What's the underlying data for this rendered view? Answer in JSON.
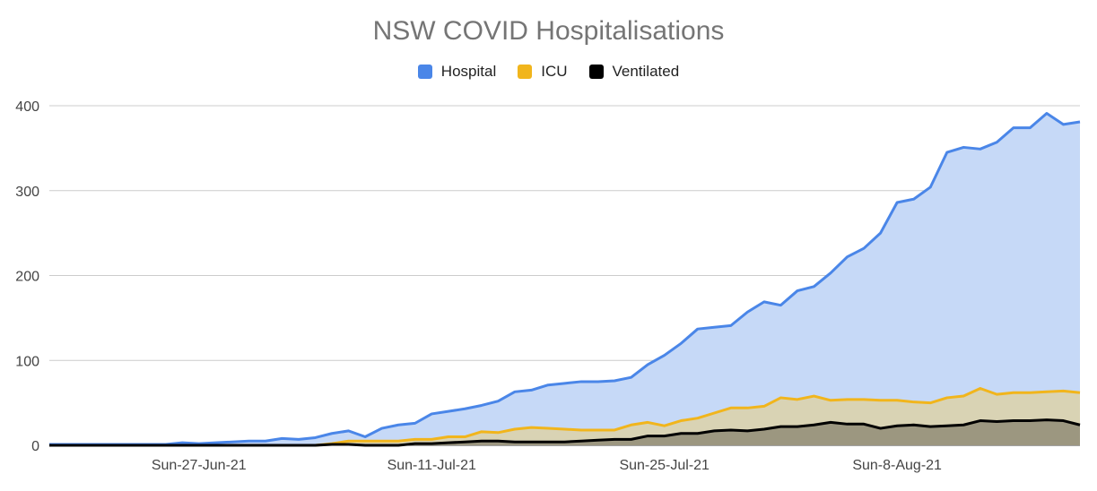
{
  "chart_data": {
    "type": "area",
    "title": "NSW COVID Hospitalisations",
    "xlabel": "",
    "ylabel": "",
    "ylim": [
      0,
      400
    ],
    "yticks": [
      0,
      100,
      200,
      300,
      400
    ],
    "x_tick_labels": [
      "Sun-27-Jun-21",
      "Sun-11-Jul-21",
      "Sun-25-Jul-21",
      "Sun-8-Aug-21"
    ],
    "x_start_date": "2021-06-18",
    "grid": true,
    "legend": "top",
    "series": [
      {
        "name": "Hospital",
        "color": "#4a86e8",
        "fill": "#c6d9f7",
        "values": [
          1,
          1,
          1,
          1,
          1,
          1,
          1,
          1,
          3,
          2,
          3,
          4,
          5,
          5,
          8,
          7,
          9,
          14,
          17,
          10,
          20,
          24,
          26,
          37,
          40,
          43,
          47,
          52,
          63,
          65,
          71,
          73,
          75,
          75,
          76,
          80,
          95,
          106,
          120,
          137,
          139,
          141,
          157,
          169,
          165,
          182,
          187,
          203,
          222,
          232,
          250,
          286,
          290,
          304,
          345,
          351,
          349,
          357,
          374,
          374,
          391,
          378,
          381
        ]
      },
      {
        "name": "ICU",
        "color": "#f1b51c",
        "fill": "#d9d3b4",
        "values": [
          0,
          0,
          0,
          0,
          0,
          0,
          0,
          0,
          0,
          0,
          0,
          0,
          0,
          0,
          0,
          0,
          0,
          2,
          5,
          5,
          5,
          5,
          7,
          7,
          10,
          10,
          16,
          15,
          19,
          21,
          20,
          19,
          18,
          18,
          18,
          24,
          27,
          23,
          29,
          32,
          38,
          44,
          44,
          46,
          56,
          54,
          58,
          53,
          54,
          54,
          53,
          53,
          51,
          50,
          56,
          58,
          67,
          60,
          62,
          62,
          63,
          64,
          62
        ]
      },
      {
        "name": "Ventilated",
        "color": "#000000",
        "fill": "#9c9780",
        "values": [
          0,
          0,
          0,
          0,
          0,
          0,
          0,
          0,
          0,
          0,
          0,
          0,
          0,
          0,
          0,
          0,
          0,
          1,
          1,
          0,
          0,
          0,
          2,
          2,
          3,
          4,
          5,
          5,
          4,
          4,
          4,
          4,
          5,
          6,
          7,
          7,
          11,
          11,
          14,
          14,
          17,
          18,
          17,
          19,
          22,
          22,
          24,
          27,
          25,
          25,
          20,
          23,
          24,
          22,
          23,
          24,
          29,
          28,
          29,
          29,
          30,
          29,
          24
        ]
      }
    ]
  }
}
